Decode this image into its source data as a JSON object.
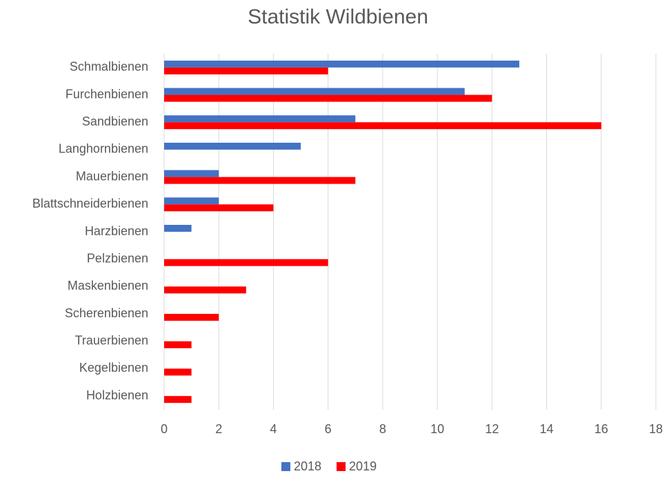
{
  "chart_data": {
    "type": "hbar",
    "title": "Statistik Wildbienen",
    "categories": [
      "Schmalbienen",
      "Furchenbienen",
      "Sandbienen",
      "Langhornbienen",
      "Mauerbienen",
      "Blattschneiderbienen",
      "Harzbienen",
      "Pelzbienen",
      "Maskenbienen",
      "Scherenbienen",
      "Trauerbienen",
      "Kegelbienen",
      "Holzbienen"
    ],
    "series": [
      {
        "name": "2018",
        "color": "#4472c4",
        "values": [
          13,
          11,
          7,
          5,
          2,
          2,
          1,
          0,
          0,
          0,
          0,
          0,
          0
        ]
      },
      {
        "name": "2019",
        "color": "#ff0000",
        "values": [
          6,
          12,
          16,
          0,
          7,
          4,
          0,
          6,
          3,
          2,
          1,
          1,
          1
        ]
      }
    ],
    "xlim": [
      0,
      18
    ],
    "xticks": [
      0,
      2,
      4,
      6,
      8,
      10,
      12,
      14,
      16,
      18
    ],
    "grid": true,
    "legend": "bottom"
  }
}
